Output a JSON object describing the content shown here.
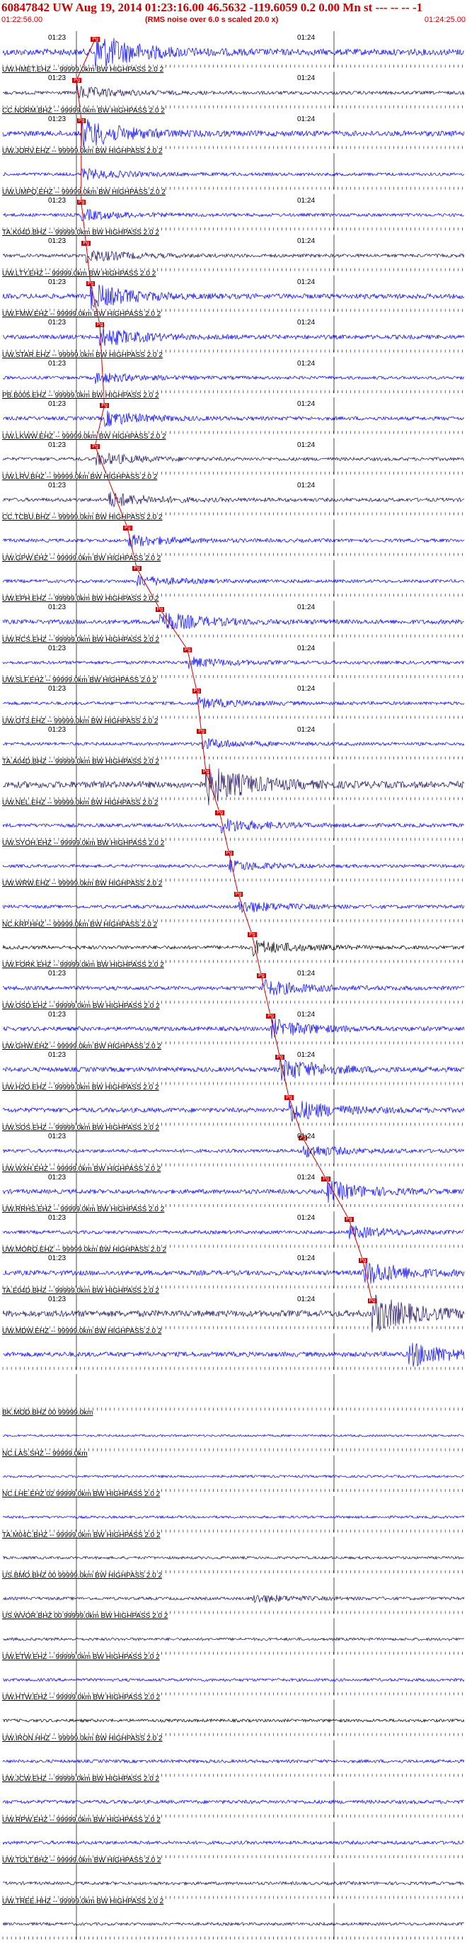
{
  "header": {
    "title": "60847842 UW Aug 19, 2014 01:23:16.00   46.5632 -119.6059  0.2 0.00 Mn st --- -- --  -1",
    "start_time": "01:22:56.00",
    "end_time": "01:24:25.00",
    "rms_note": "(RMS noise over 6.0 s scaled 20.0 x)"
  },
  "minute_labels": [
    "01:23",
    "01:24"
  ],
  "colors": {
    "blue": "#0000ee",
    "dark": "#1a0a5a",
    "black": "#000000",
    "pick": "#cc0000",
    "grid": "#000000"
  },
  "channels": [
    {
      "label": "",
      "time_labels": true,
      "color": "blue",
      "amp": 0.9,
      "event_at": 0.2,
      "pick": "Pg"
    },
    {
      "label": "UW.HMET.EHZ -- 99999.0km BW  HIGHPASS  2.0  2",
      "time_labels": true,
      "color": "dark",
      "amp": 0.3,
      "event_at": 0.16,
      "pick": "Pg"
    },
    {
      "label": "CC.NORM.BHZ -- 99999.0km BW  HIGHPASS  2.0  2",
      "time_labels": true,
      "color": "blue",
      "amp": 0.7,
      "event_at": 0.17,
      "pick": "Pg"
    },
    {
      "label": "UW.JORV.EHZ -- 99999.0km BW  HIGHPASS  2.0  2",
      "time_labels": false,
      "color": "blue",
      "amp": 0.25,
      "event_at": 0.17,
      "pick": ""
    },
    {
      "label": "UW.UMPQ.EHZ -- 99999.0km BW  HIGHPASS  2.0  2",
      "time_labels": true,
      "color": "blue",
      "amp": 0.25,
      "event_at": 0.17,
      "pick": "Pg"
    },
    {
      "label": "TA.K04D.BHZ -- 99999.0km BW  HIGHPASS  2.0  2",
      "time_labels": true,
      "color": "dark",
      "amp": 0.3,
      "event_at": 0.18,
      "pick": "Pg"
    },
    {
      "label": "UW.LTY.EHZ -- 99999.0km BW  HIGHPASS  2.0  2",
      "time_labels": true,
      "color": "blue",
      "amp": 0.6,
      "event_at": 0.19,
      "pick": "Pg"
    },
    {
      "label": "UW.FMW.EHZ -- 99999.0km BW  HIGHPASS  2.0  2",
      "time_labels": true,
      "color": "blue",
      "amp": 0.45,
      "event_at": 0.21,
      "pick": "Pg"
    },
    {
      "label": "UW.STAR.EHZ -- 99999.0km BW  HIGHPASS  2.0  2",
      "time_labels": true,
      "color": "blue",
      "amp": 0.25,
      "event_at": 0.2,
      "pick": ""
    },
    {
      "label": "PB.B005.EHZ -- 99999.0km BW  HIGHPASS  2.0  2",
      "time_labels": true,
      "color": "blue",
      "amp": 0.35,
      "event_at": 0.22,
      "pick": "Pg"
    },
    {
      "label": "UW.LKWW.EHZ -- 99999.0km BW  HIGHPASS  2.0  2",
      "time_labels": true,
      "color": "dark",
      "amp": 0.3,
      "event_at": 0.2,
      "pick": "Pg"
    },
    {
      "label": "UW.LRV.BHZ -- 99999.0km BW  HIGHPASS  2.0  2",
      "time_labels": true,
      "color": "dark",
      "amp": 0.35,
      "event_at": 0.23,
      "pick": ""
    },
    {
      "label": "CC.TCBU.BHZ -- 99999.0km BW  HIGHPASS  2.0  2",
      "time_labels": false,
      "color": "blue",
      "amp": 0.3,
      "event_at": 0.27,
      "pick": "Pg"
    },
    {
      "label": "UW.GPW.EHZ -- 99999.0km BW  HIGHPASS  2.0  2",
      "time_labels": false,
      "color": "blue",
      "amp": 0.25,
      "event_at": 0.29,
      "pick": "Pg"
    },
    {
      "label": "UW.EPH.EHZ -- 99999.0km BW  HIGHPASS  2.0  2",
      "time_labels": true,
      "color": "blue",
      "amp": 0.5,
      "event_at": 0.34,
      "pick": "Pg"
    },
    {
      "label": "UW.RCS.EHZ -- 99999.0km BW  HIGHPASS  2.0  2",
      "time_labels": true,
      "color": "blue",
      "amp": 0.25,
      "event_at": 0.4,
      "pick": "Pg"
    },
    {
      "label": "UW.SLF.EHZ -- 99999.0km BW  HIGHPASS  2.0  2",
      "time_labels": true,
      "color": "blue",
      "amp": 0.25,
      "event_at": 0.42,
      "pick": "Pg"
    },
    {
      "label": "UW.OT3.EHZ -- 99999.0km BW  HIGHPASS  2.0  2",
      "time_labels": true,
      "color": "blue",
      "amp": 0.25,
      "event_at": 0.43,
      "pick": "Pg"
    },
    {
      "label": "TA.A04D.BHZ -- 99999.0km BW  HIGHPASS  2.0  2",
      "time_labels": false,
      "color": "dark",
      "amp": 0.95,
      "event_at": 0.44,
      "pick": "Pg"
    },
    {
      "label": "UW.NEL.EHZ -- 99999.0km BW  HIGHPASS  2.0  2",
      "time_labels": false,
      "color": "blue",
      "amp": 0.35,
      "event_at": 0.47,
      "pick": "Pg"
    },
    {
      "label": "UW.SYOH.EHZ -- 99999.0km BW  HIGHPASS  2.0  2",
      "time_labels": false,
      "color": "blue",
      "amp": 0.25,
      "event_at": 0.49,
      "pick": "Pg"
    },
    {
      "label": "UW.WRW.EHZ -- 99999.0km BW  HIGHPASS  2.0  2",
      "time_labels": false,
      "color": "blue",
      "amp": 0.3,
      "event_at": 0.51,
      "pick": "Pg"
    },
    {
      "label": "NC.KRP.HHZ -- 99999.0km BW  HIGHPASS  2.0  2",
      "time_labels": false,
      "color": "black",
      "amp": 0.35,
      "event_at": 0.54,
      "pick": "Pg"
    },
    {
      "label": "UW.FORK.EHZ -- 99999.0km BW  HIGHPASS  2.0  2",
      "time_labels": true,
      "color": "blue",
      "amp": 0.4,
      "event_at": 0.56,
      "pick": "Pg"
    },
    {
      "label": "UW.OSD.EHZ -- 99999.0km BW  HIGHPASS  2.0  2",
      "time_labels": true,
      "color": "blue",
      "amp": 0.45,
      "event_at": 0.58,
      "pick": "Pg"
    },
    {
      "label": "UW.GHW.EHZ -- 99999.0km BW  HIGHPASS  2.0  2",
      "time_labels": true,
      "color": "blue",
      "amp": 0.55,
      "event_at": 0.6,
      "pick": "Pg"
    },
    {
      "label": "UW.H2O.EHZ -- 99999.0km BW  HIGHPASS  2.0  2",
      "time_labels": false,
      "color": "blue",
      "amp": 0.55,
      "event_at": 0.62,
      "pick": "Pg"
    },
    {
      "label": "UW.SOS.EHZ -- 99999.0km BW  HIGHPASS  2.0  2",
      "time_labels": true,
      "color": "blue",
      "amp": 0.3,
      "event_at": 0.65,
      "pick": "Pg"
    },
    {
      "label": "UW.WXH.EHZ -- 99999.0km BW  HIGHPASS  2.0  2",
      "time_labels": true,
      "color": "blue",
      "amp": 0.5,
      "event_at": 0.7,
      "pick": "Pg"
    },
    {
      "label": "UW.RRHS.EHZ -- 99999.0km BW  HIGHPASS  2.0  2",
      "time_labels": true,
      "color": "blue",
      "amp": 0.3,
      "event_at": 0.75,
      "pick": "Pg"
    },
    {
      "label": "UW.MORQ.EHZ -- 99999.0km BW  HIGHPASS  2.0  2",
      "time_labels": true,
      "color": "blue",
      "amp": 0.6,
      "event_at": 0.78,
      "pick": "Pg"
    },
    {
      "label": "TA.E04D.BHZ -- 99999.0km BW  HIGHPASS  2.0  2",
      "time_labels": true,
      "color": "dark",
      "amp": 0.9,
      "event_at": 0.8,
      "pick": "Pg"
    },
    {
      "label": "UW.MDW.EHZ -- 99999.0km BW  HIGHPASS  2.0  2",
      "time_labels": false,
      "color": "blue",
      "amp": 0.6,
      "event_at": 0.88,
      "pick": ""
    },
    {
      "label": "",
      "time_labels": false,
      "color": "blue",
      "amp": 0.0,
      "event_at": 0,
      "pick": ""
    },
    {
      "label": "BK.MOD.BHZ 00 99999.0km",
      "time_labels": false,
      "color": "blue",
      "amp": 0.05,
      "event_at": 0,
      "pick": ""
    },
    {
      "label": "NC.LAS.SHZ -- 99999.0km",
      "time_labels": false,
      "color": "blue",
      "amp": 0.1,
      "event_at": 0,
      "pick": ""
    },
    {
      "label": "NC.LHE.EHZ 02 99999.0km BW  HIGHPASS  2.0  2",
      "time_labels": false,
      "color": "blue",
      "amp": 0.12,
      "event_at": 0,
      "pick": ""
    },
    {
      "label": "TA.M04C.BHZ -- 99999.0km BW  HIGHPASS  2.0  2",
      "time_labels": false,
      "color": "dark",
      "amp": 0.15,
      "event_at": 0,
      "pick": ""
    },
    {
      "label": "US.BMO.BHZ 00 99999.0km BW  HIGHPASS  2.0  2",
      "time_labels": false,
      "color": "dark",
      "amp": 0.2,
      "event_at": 0.54,
      "pick": ""
    },
    {
      "label": "US.WVOR.BHZ 00 99999.0km BW  HIGHPASS  2.0  2",
      "time_labels": false,
      "color": "dark",
      "amp": 0.18,
      "event_at": 0,
      "pick": ""
    },
    {
      "label": "UW.ETW.EHZ -- 99999.0km BW  HIGHPASS  2.0  2",
      "time_labels": false,
      "color": "blue",
      "amp": 0.2,
      "event_at": 0,
      "pick": ""
    },
    {
      "label": "UW.HTW.EHZ -- 99999.0km BW  HIGHPASS  2.0  2",
      "time_labels": false,
      "color": "black",
      "amp": 0.22,
      "event_at": 0,
      "pick": ""
    },
    {
      "label": "UW.IRON.HHZ -- 99999.0km BW  HIGHPASS  2.0  2",
      "time_labels": false,
      "color": "blue",
      "amp": 0.25,
      "event_at": 0,
      "pick": ""
    },
    {
      "label": "UW.JCW.EHZ -- 99999.0km BW  HIGHPASS  2.0  2",
      "time_labels": false,
      "color": "blue",
      "amp": 0.35,
      "event_at": 0,
      "pick": ""
    },
    {
      "label": "UW.RPW.EHZ -- 99999.0km BW  HIGHPASS  2.0  2",
      "time_labels": false,
      "color": "blue",
      "amp": 0.3,
      "event_at": 0,
      "pick": ""
    },
    {
      "label": "UW.TOLT.BHZ -- 99999.0km BW  HIGHPASS  2.0  2",
      "time_labels": false,
      "color": "dark",
      "amp": 0.25,
      "event_at": 0,
      "pick": ""
    },
    {
      "label": "UW.TREE.HHZ -- 99999.0km BW  HIGHPASS  2.0  2",
      "time_labels": false,
      "color": "dark",
      "amp": 0.2,
      "event_at": 0,
      "pick": ""
    }
  ]
}
